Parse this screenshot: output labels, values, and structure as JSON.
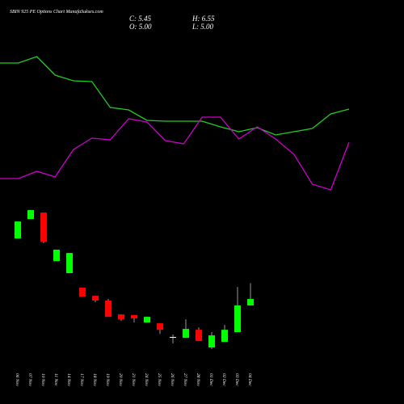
{
  "chart_data": [
    {
      "type": "candlestick",
      "title": "SBIN 925 PE Options  Chart ManafaSukses.com",
      "header_texts": [
        "C: 5.45",
        "H: 6.55",
        "O: 5.00",
        "L: 5.00"
      ],
      "categories": [
        "06 Nov",
        "07 Nov",
        "10 Nov",
        "11 Nov",
        "14 Nov",
        "17 Nov",
        "18 Nov",
        "19 Nov",
        "20 Nov",
        "21 Nov",
        "24 Nov",
        "25 Nov",
        "26 Nov",
        "27 Nov",
        "28 Nov",
        "01 Dec",
        "02 Dec",
        "03 Dec",
        "04 Dec"
      ],
      "open": [
        9.66,
        11.01,
        11.46,
        8.09,
        7.25,
        6.24,
        5.67,
        5.34,
        4.38,
        4.33,
        3.82,
        3.76,
        2.81,
        2.75,
        3.31,
        2.08,
        2.47,
        3.15,
        5.0
      ],
      "high": [
        10.84,
        11.63,
        11.46,
        8.88,
        8.65,
        6.24,
        5.67,
        5.45,
        4.38,
        4.33,
        4.21,
        3.76,
        2.98,
        4.04,
        3.48,
        3.15,
        3.65,
        6.29,
        6.55
      ],
      "low": [
        9.66,
        11.01,
        9.33,
        8.09,
        7.25,
        5.62,
        5.22,
        4.21,
        3.93,
        3.82,
        3.82,
        3.03,
        2.36,
        2.75,
        2.53,
        1.97,
        2.47,
        3.15,
        5.0
      ],
      "close": [
        10.84,
        11.63,
        9.44,
        8.88,
        8.65,
        5.62,
        5.34,
        4.21,
        4.04,
        4.1,
        4.21,
        3.31,
        2.81,
        3.37,
        2.53,
        2.92,
        3.31,
        5.0,
        5.45
      ],
      "up_color": "#00ff00",
      "down_color": "#ff0000",
      "flat_color": "#ffffff",
      "ylim": [
        -1.85,
        26.24
      ]
    },
    {
      "type": "line",
      "categories": [
        null,
        null,
        null,
        null,
        null,
        null,
        null,
        null,
        null,
        null,
        null,
        null,
        null,
        null,
        null,
        null,
        null,
        null,
        null,
        null
      ],
      "series": [
        {
          "color": "#22cc22",
          "values": [
            422,
            422,
            430,
            407,
            400,
            399,
            367,
            364,
            351,
            350,
            350,
            350,
            343,
            337,
            342,
            333,
            337,
            341,
            359,
            365
          ]
        },
        {
          "color": "#cc00cc",
          "values": [
            279,
            279,
            288,
            281,
            315,
            329,
            327,
            353,
            349,
            326,
            322,
            355,
            355,
            328,
            343,
            328,
            309,
            272,
            265,
            324
          ]
        }
      ],
      "ylim": [
        0,
        500
      ]
    }
  ]
}
